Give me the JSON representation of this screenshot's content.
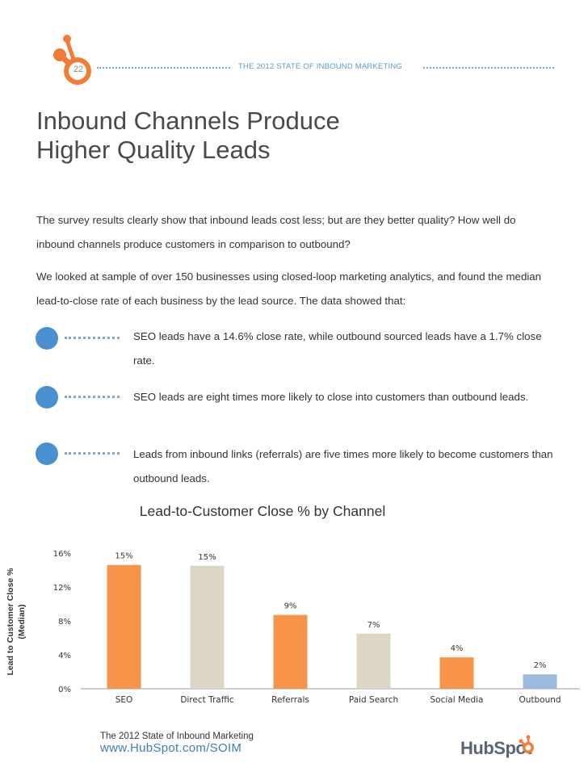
{
  "header": {
    "page_number": "22",
    "report_title": "THE 2012 STATE OF INBOUND MARKETING"
  },
  "title": {
    "line1": "Inbound Channels Produce",
    "line2": "Higher Quality Leads"
  },
  "intro": {
    "p1": "The survey results clearly show that inbound leads cost less; but are they better quality? How well do inbound channels produce customers in comparison to outbound?",
    "p2": "We looked at sample of over 150 businesses using closed-loop marketing analytics, and found the median lead-to-close rate of each business by the lead source. The data showed that:"
  },
  "bullets": [
    "SEO leads have a 14.6% close rate, while outbound sourced leads have a 1.7% close rate.",
    "SEO leads are eight times more likely to close into customers than outbound leads.",
    "Leads from inbound links (referrals) are five times more likely to become customers than outbound leads."
  ],
  "colors": {
    "orange": "#f7944a",
    "beige": "#dcd7c5",
    "blue": "#9cb9e0",
    "accent_blue": "#4a90d0",
    "hubspot_orange": "#f47b36"
  },
  "chart_data": {
    "type": "bar",
    "title": "Lead-to-Customer Close % by Channel",
    "ylabel": "Lead to Customer Close % (Median)",
    "xlabel": "",
    "categories": [
      "SEO",
      "Direct Traffic",
      "Referrals",
      "Paid Search",
      "Social Media",
      "Outbound"
    ],
    "values": [
      14.6,
      14.5,
      8.7,
      6.5,
      3.7,
      1.7
    ],
    "data_labels": [
      "15%",
      "15%",
      "9%",
      "7%",
      "4%",
      "2%"
    ],
    "bar_colors": [
      "#f7944a",
      "#dcd7c5",
      "#f7944a",
      "#dcd7c5",
      "#f7944a",
      "#9cb9e0"
    ],
    "yticks": [
      "0%",
      "4%",
      "8%",
      "12%",
      "16%"
    ],
    "ylim": [
      0,
      16
    ],
    "grid": false
  },
  "footer": {
    "line1": "The 2012 State of Inbound Marketing",
    "line2": "www.HubSpot.com/SOIM",
    "brand": "HubSpot"
  }
}
